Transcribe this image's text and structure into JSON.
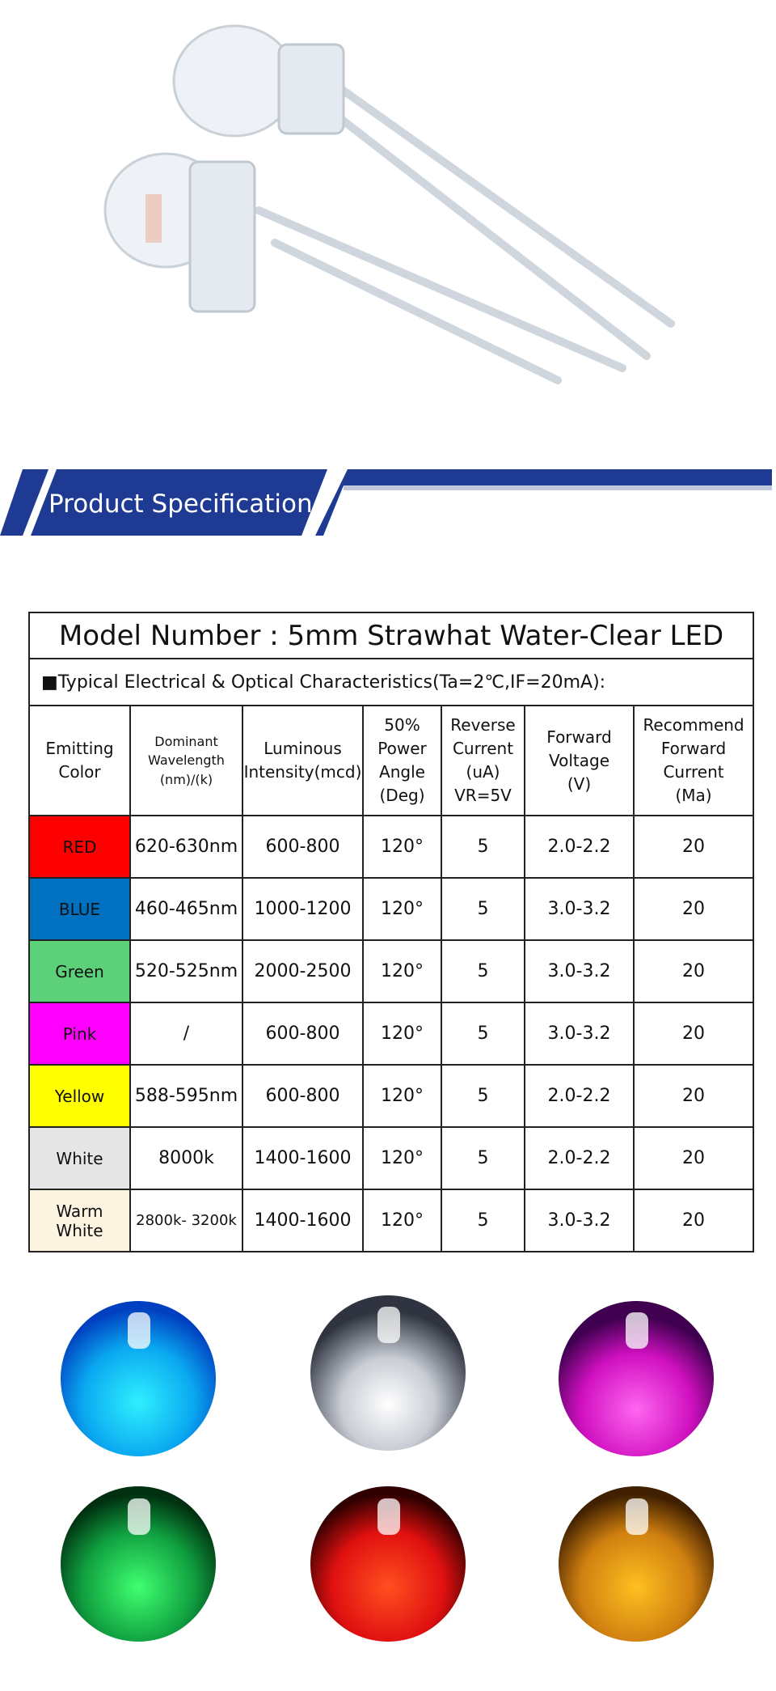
{
  "banner": {
    "title": "Product Specification"
  },
  "table": {
    "title": "Model Number : 5mm Strawhat Water-Clear LED",
    "subtitle": "■Typical Electrical & Optical Characteristics(Ta=2℃,IF=20mA):",
    "headers": [
      "Emitting\nColor",
      "Dominant\nWavelength\n(nm)/(k)",
      "Luminous\nIntensity(mcd)",
      "50%\nPower\nAngle\n(Deg)",
      "Reverse\nCurrent\n(uA)\nVR=5V",
      "Forward\nVoltage\n(V)",
      "Recommend\nForward\nCurrent\n(Ma)"
    ],
    "rows": [
      {
        "swatch": "#ff0000",
        "cells": [
          "RED",
          "620-630nm",
          "600-800",
          "120°",
          "5",
          "2.0-2.2",
          "20"
        ]
      },
      {
        "swatch": "#0070c0",
        "cells": [
          "BLUE",
          "460-465nm",
          "1000-1200",
          "120°",
          "5",
          "3.0-3.2",
          "20"
        ]
      },
      {
        "swatch": "#5cd17a",
        "cells": [
          "Green",
          "520-525nm",
          "2000-2500",
          "120°",
          "5",
          "3.0-3.2",
          "20"
        ]
      },
      {
        "swatch": "#ff00ff",
        "cells": [
          "Pink",
          "/",
          "600-800",
          "120°",
          "5",
          "3.0-3.2",
          "20"
        ]
      },
      {
        "swatch": "#ffff00",
        "cells": [
          "Yellow",
          "588-595nm",
          "600-800",
          "120°",
          "5",
          "2.0-2.2",
          "20"
        ]
      },
      {
        "swatch": "#e6e6e6",
        "cells": [
          "White",
          "8000k",
          "1400-1600",
          "120°",
          "5",
          "2.0-2.2",
          "20"
        ]
      },
      {
        "swatch": "#fdf3e1",
        "cells": [
          "Warm\nWhite",
          "2800k- 3200k",
          "1400-1600",
          "120°",
          "5",
          "3.0-3.2",
          "20"
        ]
      }
    ]
  }
}
